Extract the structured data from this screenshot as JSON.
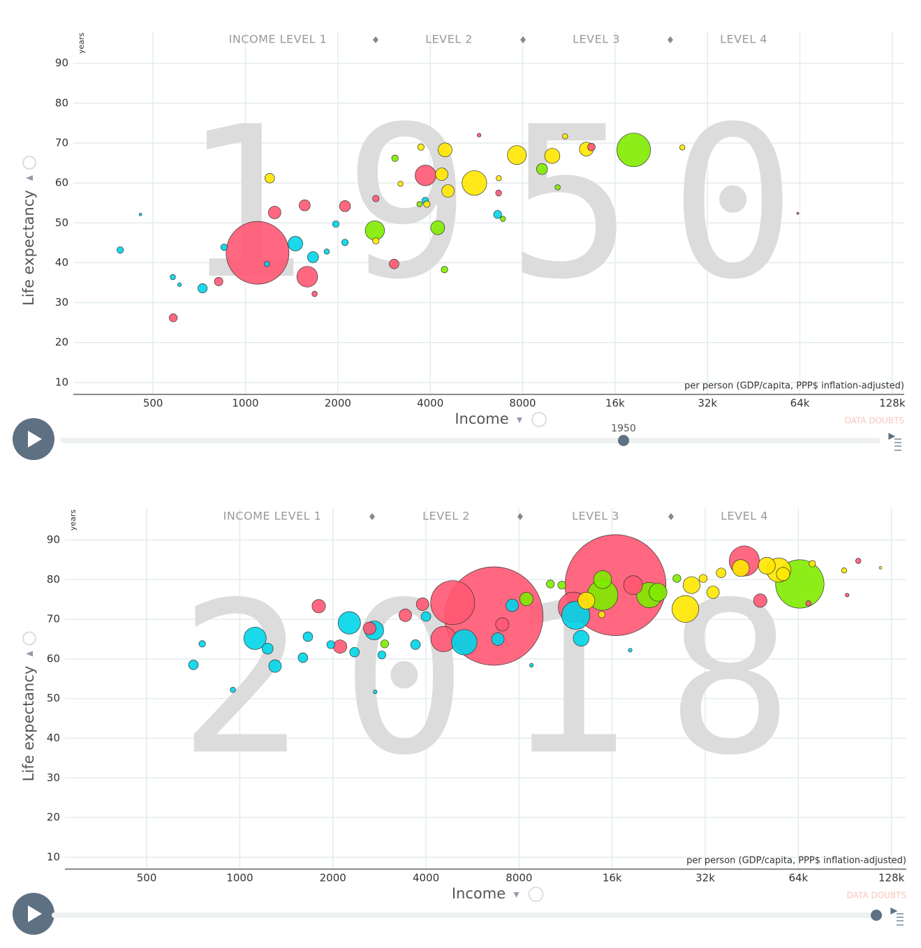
{
  "chart_data": [
    {
      "type": "scatter",
      "year": 1950,
      "xlabel": "Income",
      "ylabel": "Life expectancy",
      "yunit": "years",
      "xnote": "per person (GDP/capita, PPP$ inflation-adjusted)",
      "data_doubts": "DATA DOUBTS",
      "income_levels": [
        "INCOME LEVEL 1",
        "LEVEL 2",
        "LEVEL 3",
        "LEVEL 4"
      ],
      "xlog": true,
      "grid": true,
      "xlim": [
        275,
        140000
      ],
      "ylim": [
        7,
        98
      ],
      "xticks": [
        500,
        1000,
        2000,
        4000,
        8000,
        {
          "value": 16000,
          "label": "16k"
        },
        {
          "value": 32000,
          "label": "32k"
        },
        {
          "value": 64000,
          "label": "64k"
        },
        {
          "value": 128000,
          "label": "128k"
        }
      ],
      "yticks": [
        10,
        20,
        30,
        40,
        50,
        60,
        70,
        80,
        90
      ],
      "series": [
        {
          "color": "#ff5872",
          "x": [
            1095,
            1590,
            1245,
            1560,
            2110,
            3860,
            3050,
            582,
            818,
            1680,
            2660,
            6680,
            5770,
            13400,
            63000
          ],
          "values": [
            42.5,
            36.5,
            52.6,
            54.4,
            54.2,
            61.9,
            39.7,
            26.2,
            35.3,
            32.2,
            56.1,
            57.5,
            72,
            69,
            52.4
          ],
          "sizes": [
            550,
            60,
            22,
            17,
            17,
            60,
            13,
            9,
            10,
            4,
            6,
            5,
            2,
            8,
            0.5
          ]
        },
        {
          "color": "#00d5e9",
          "x": [
            391,
            455,
            580,
            725,
            852,
            1455,
            1660,
            1970,
            2110,
            1840,
            6630,
            3850,
            1175,
            610
          ],
          "values": [
            43.2,
            52.1,
            36.4,
            33.6,
            43.9,
            44.8,
            41.4,
            49.7,
            45.1,
            42.8,
            52.1,
            55.6,
            39.7,
            34.5
          ],
          "sizes": [
            6,
            1,
            4,
            12,
            6,
            30,
            17,
            6,
            6,
            4,
            9,
            6,
            4,
            2
          ]
        },
        {
          "color": "#ffe700",
          "x": [
            1200,
            4470,
            5570,
            4360,
            7660,
            4570,
            9990,
            12900,
            3730,
            26500,
            11000,
            6690,
            3200,
            3900,
            2660
          ],
          "values": [
            61.2,
            68.3,
            60,
            62.2,
            67,
            58,
            66.8,
            68.5,
            69,
            68.9,
            71.7,
            61.2,
            59.8,
            54.7,
            45.5
          ],
          "sizes": [
            13,
            27,
            85,
            22,
            50,
            22,
            32,
            27,
            6,
            4,
            4,
            4,
            4,
            6,
            6
          ]
        },
        {
          "color": "#7feb00",
          "x": [
            18400,
            2640,
            4230,
            9250,
            4450,
            3070,
            6900,
            10400,
            3690
          ],
          "values": [
            68.3,
            48.1,
            48.8,
            63.5,
            38.3,
            66.2,
            51,
            58.9,
            54.7
          ],
          "sizes": [
            157,
            52,
            27,
            17,
            6,
            6,
            4,
            4,
            4
          ]
        }
      ]
    },
    {
      "type": "scatter",
      "year": 2018,
      "xlabel": "Income",
      "ylabel": "Life expectancy",
      "yunit": "years",
      "xnote": "per person (GDP/capita, PPP$ inflation-adjusted)",
      "data_doubts": "DATA DOUBTS",
      "income_levels": [
        "INCOME LEVEL 1",
        "LEVEL 2",
        "LEVEL 3",
        "LEVEL 4"
      ],
      "xlog": true,
      "grid": true,
      "xlim": [
        272,
        143000
      ],
      "ylim": [
        7,
        98
      ],
      "xticks": [
        500,
        1000,
        2000,
        4000,
        8000,
        {
          "value": 16000,
          "label": "16k"
        },
        {
          "value": 32000,
          "label": "32k"
        },
        {
          "value": 64000,
          "label": "64k"
        },
        {
          "value": 128000,
          "label": "128k"
        }
      ],
      "yticks": [
        10,
        20,
        30,
        40,
        50,
        60,
        70,
        80,
        90
      ],
      "series": [
        {
          "color": "#ff5872",
          "x": [
            16400,
            6630,
            4880,
            12000,
            4560,
            42800,
            48200,
            100000,
            92000,
            1800,
            2110,
            2630,
            3430,
            3900,
            18700,
            69000,
            7060
          ],
          "values": [
            78.6,
            70.8,
            74.2,
            73,
            65,
            84.7,
            74.7,
            84.7,
            76.1,
            73.3,
            63.1,
            67.7,
            71,
            73.8,
            78.6,
            74,
            68.7
          ],
          "sizes": [
            1420,
            1350,
            270,
            130,
            90,
            127,
            25,
            4,
            2,
            25,
            25,
            22,
            22,
            22,
            50,
            4,
            25
          ]
        },
        {
          "color": "#00d5e9",
          "x": [
            12200,
            5320,
            2260,
            2720,
            1120,
            1300,
            708,
            756,
            950,
            1230,
            1600,
            1660,
            1970,
            2350,
            2880,
            3700,
            4000,
            6830,
            12700,
            7600,
            2740,
            18300,
            8770
          ],
          "values": [
            71,
            64.2,
            69.1,
            67.2,
            65.2,
            58.2,
            58.5,
            63.8,
            52.2,
            62.6,
            60.3,
            65.6,
            63.6,
            61.7,
            61,
            63.6,
            70.7,
            65,
            65.2,
            73.5,
            51.7,
            62.2,
            58.4
          ],
          "sizes": [
            110,
            90,
            70,
            50,
            70,
            22,
            13,
            6,
            4,
            17,
            13,
            13,
            9,
            13,
            9,
            13,
            13,
            22,
            35,
            22,
            2,
            2,
            2
          ]
        },
        {
          "color": "#ffe700",
          "x": [
            27600,
            28900,
            55300,
            50600,
            57100,
            41700,
            13200,
            33900,
            36000,
            71000,
            90000,
            118000,
            14800,
            31500
          ],
          "values": [
            72.6,
            78.6,
            82.4,
            83.5,
            81.4,
            82.9,
            74.7,
            76.8,
            81.7,
            84,
            82.3,
            83,
            71.2,
            80.3
          ],
          "sizes": [
            100,
            40,
            82,
            40,
            25,
            40,
            40,
            22,
            13,
            6,
            4,
            1,
            6,
            9
          ]
        },
        {
          "color": "#7feb00",
          "x": [
            64700,
            14900,
            21100,
            14900,
            8450,
            11000,
            2940,
            22500,
            25900,
            10100
          ],
          "values": [
            78.9,
            76.1,
            76.1,
            80,
            75.1,
            78.6,
            63.8,
            76.8,
            80.3,
            78.9
          ],
          "sizes": [
            327,
            130,
            90,
            45,
            25,
            9,
            9,
            45,
            9,
            9
          ]
        }
      ]
    }
  ]
}
